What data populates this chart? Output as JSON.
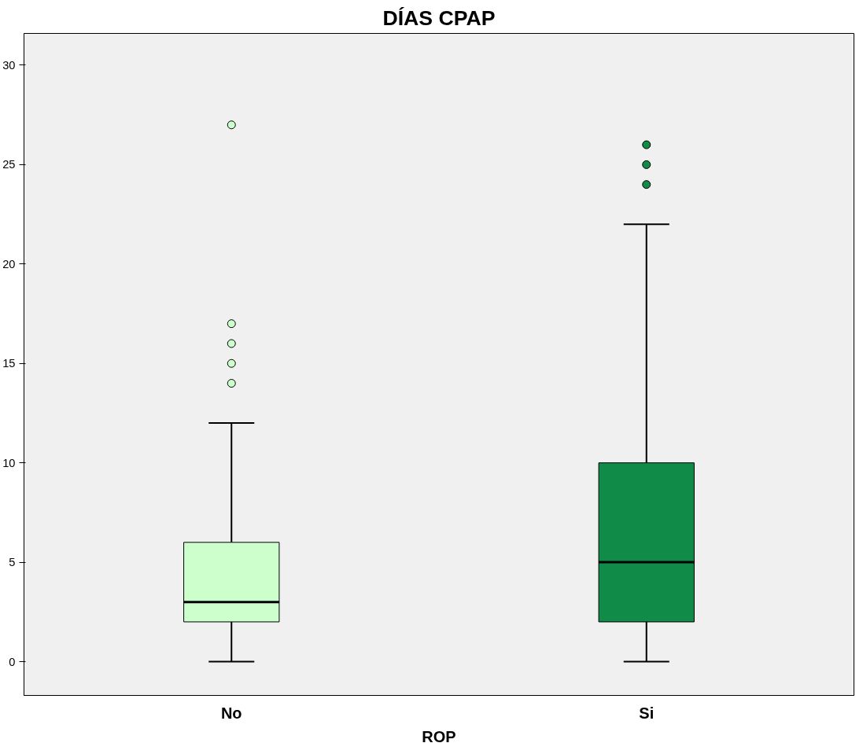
{
  "chart_data": {
    "type": "box",
    "title": "DÍAS CPAP",
    "xlabel": "ROP",
    "categories": [
      "No",
      "Si"
    ],
    "colors": [
      "#ccffcc",
      "#108c48"
    ],
    "boxes": [
      {
        "low": 0,
        "q1": 2,
        "median": 3,
        "q3": 6,
        "high": 12,
        "outliers": [
          14,
          15,
          16,
          17,
          27
        ]
      },
      {
        "low": 0,
        "q1": 2,
        "median": 5,
        "q3": 10,
        "high": 22,
        "outliers": [
          24,
          25,
          26
        ]
      }
    ],
    "ylim": [
      -1.7,
      31.6
    ],
    "yticks": [
      0,
      5,
      10,
      15,
      20,
      25,
      30
    ],
    "grid": false
  }
}
